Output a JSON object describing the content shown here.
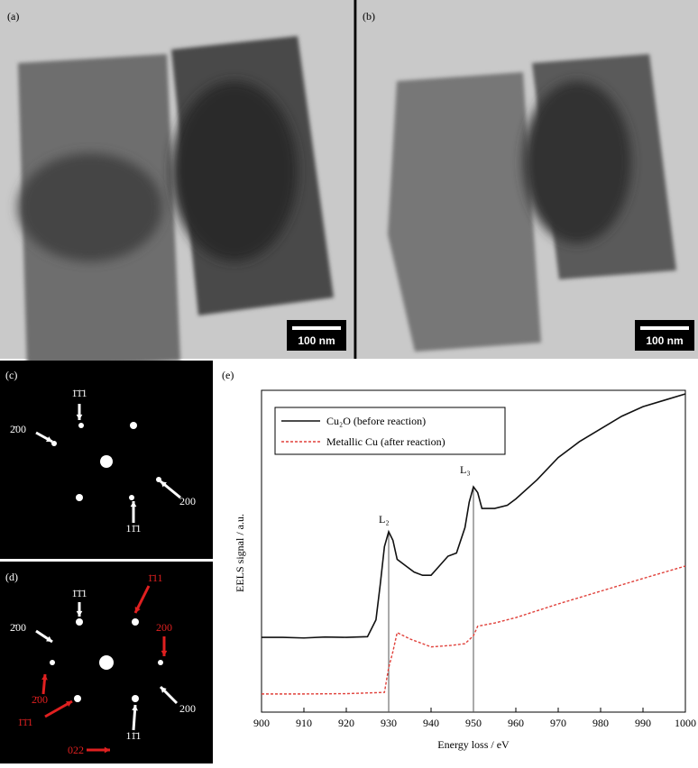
{
  "panels": [
    {
      "label": "(a)",
      "scale_bar": "100 nm"
    },
    {
      "label": "(b)",
      "scale_bar": "100 nm"
    },
    {
      "label": "(c)",
      "spots": [
        "1̄1̄1",
        "2̄00",
        "200",
        "11̄1"
      ]
    },
    {
      "label": "(d)",
      "spots": [
        "1̄1̄1",
        "2̄00",
        "200",
        "11̄1"
      ],
      "red_spots": [
        "1̄11",
        "200",
        "2̄00",
        "1̄1̄1",
        "022"
      ]
    },
    {
      "label": "(e)"
    }
  ],
  "chart_data": {
    "type": "line",
    "x_label": "Energy loss / eV",
    "y_label": "EELS signal / a.u.",
    "xlim": [
      900,
      1000
    ],
    "xticks": [
      900,
      910,
      920,
      930,
      940,
      950,
      960,
      970,
      980,
      990,
      1000
    ],
    "ylim": [
      0,
      10
    ],
    "annotations": [
      "L₂",
      "L₃"
    ],
    "markers": [
      930,
      950
    ],
    "series": [
      {
        "name": "Cu₂O (before reaction)",
        "color": "#111111",
        "dash": false,
        "x": [
          900,
          905,
          910,
          915,
          920,
          925,
          927,
          928,
          929,
          930,
          931,
          932,
          934,
          936,
          938,
          940,
          942,
          944,
          946,
          948,
          949,
          950,
          951,
          952,
          955,
          958,
          960,
          965,
          970,
          975,
          980,
          985,
          990,
          995,
          1000
        ],
        "values": [
          2.35,
          2.35,
          2.33,
          2.36,
          2.35,
          2.37,
          2.9,
          4.0,
          5.2,
          5.67,
          5.4,
          4.8,
          4.6,
          4.4,
          4.3,
          4.3,
          4.6,
          4.9,
          5.0,
          5.8,
          6.6,
          7.08,
          6.9,
          6.4,
          6.4,
          6.5,
          6.7,
          7.3,
          8.0,
          8.5,
          8.9,
          9.3,
          9.6,
          9.8,
          10.0
        ]
      },
      {
        "name": "Metallic Cu (after reaction)",
        "color": "#e0403a",
        "dash": true,
        "x": [
          900,
          910,
          920,
          929,
          930,
          931,
          932,
          935,
          940,
          945,
          948,
          950,
          951,
          955,
          960,
          970,
          980,
          990,
          1000
        ],
        "values": [
          0.57,
          0.57,
          0.58,
          0.62,
          1.4,
          1.9,
          2.5,
          2.3,
          2.05,
          2.1,
          2.15,
          2.4,
          2.7,
          2.8,
          2.97,
          3.4,
          3.8,
          4.2,
          4.59
        ]
      }
    ]
  }
}
